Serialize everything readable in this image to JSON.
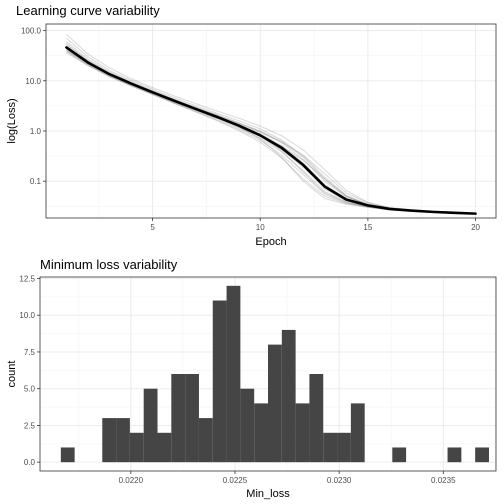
{
  "chart_data": [
    {
      "type": "line",
      "title": "Learning curve variability",
      "xlabel": "Epoch",
      "ylabel": "log(Loss)",
      "y_scale": "log",
      "xlim": [
        0.05,
        20.95
      ],
      "ylim": [
        0.0185,
        135
      ],
      "x_ticks": [
        5,
        10,
        15,
        20
      ],
      "x_tick_labels": [
        "5",
        "10",
        "15",
        "20"
      ],
      "y_ticks": [
        0.1,
        1,
        10,
        100
      ],
      "y_tick_labels": [
        "0.1",
        "1.0",
        "10.0",
        "100.0"
      ],
      "grid": true,
      "legend": "none",
      "series": [
        {
          "x": [
            1,
            2,
            3,
            4,
            5,
            6,
            7,
            8,
            9,
            10,
            11,
            12,
            13,
            14,
            15,
            16,
            17,
            18,
            19,
            20
          ],
          "values": [
            46,
            23,
            13.5,
            8.8,
            5.9,
            4.0,
            2.75,
            1.9,
            1.28,
            0.82,
            0.46,
            0.21,
            0.078,
            0.043,
            0.033,
            0.028,
            0.026,
            0.0245,
            0.0235,
            0.0226
          ]
        }
      ],
      "replicate_series": [
        [
          84,
          34,
          18,
          11,
          7.3,
          5.0,
          3.5,
          2.5,
          1.8,
          1.25,
          0.8,
          0.42,
          0.17,
          0.065,
          0.038,
          0.03,
          0.027,
          0.025,
          0.0238,
          0.0229
        ],
        [
          70,
          30,
          16,
          10.2,
          6.8,
          4.6,
          3.2,
          2.25,
          1.6,
          1.1,
          0.66,
          0.32,
          0.12,
          0.052,
          0.035,
          0.029,
          0.0265,
          0.0248,
          0.0236,
          0.0227
        ],
        [
          60,
          27,
          15,
          9.6,
          6.4,
          4.3,
          3.0,
          2.1,
          1.45,
          0.97,
          0.58,
          0.27,
          0.1,
          0.048,
          0.034,
          0.0285,
          0.026,
          0.0246,
          0.0235,
          0.0226
        ],
        [
          52,
          25,
          14,
          9.1,
          6.1,
          4.1,
          2.85,
          2.0,
          1.35,
          0.88,
          0.51,
          0.23,
          0.085,
          0.045,
          0.0335,
          0.0282,
          0.0258,
          0.0244,
          0.0234,
          0.0225
        ],
        [
          48,
          24,
          13.8,
          9.0,
          6.0,
          4.05,
          2.8,
          1.95,
          1.32,
          0.85,
          0.48,
          0.22,
          0.08,
          0.044,
          0.033,
          0.028,
          0.0257,
          0.0243,
          0.0233,
          0.0225
        ],
        [
          44,
          22.5,
          13.2,
          8.6,
          5.8,
          3.9,
          2.7,
          1.85,
          1.25,
          0.8,
          0.44,
          0.2,
          0.075,
          0.042,
          0.0325,
          0.0278,
          0.0256,
          0.0242,
          0.0233,
          0.0226
        ],
        [
          42,
          22,
          13,
          8.5,
          5.7,
          3.85,
          2.65,
          1.82,
          1.22,
          0.77,
          0.42,
          0.19,
          0.07,
          0.041,
          0.032,
          0.0277,
          0.0255,
          0.0242,
          0.0234,
          0.0227
        ],
        [
          40,
          21,
          12.5,
          8.2,
          5.5,
          3.7,
          2.55,
          1.75,
          1.15,
          0.72,
          0.38,
          0.16,
          0.062,
          0.039,
          0.0315,
          0.0275,
          0.0254,
          0.0241,
          0.0232,
          0.0225
        ],
        [
          38,
          20.5,
          12.2,
          8.0,
          5.4,
          3.6,
          2.45,
          1.66,
          1.08,
          0.66,
          0.33,
          0.135,
          0.055,
          0.037,
          0.031,
          0.0272,
          0.0253,
          0.024,
          0.0232,
          0.0224
        ],
        [
          36,
          20,
          12,
          7.9,
          5.3,
          3.55,
          2.4,
          1.6,
          1.02,
          0.6,
          0.29,
          0.11,
          0.05,
          0.036,
          0.0305,
          0.027,
          0.0252,
          0.024,
          0.0231,
          0.0224
        ],
        [
          40,
          22,
          13.2,
          8.7,
          5.9,
          4.1,
          2.9,
          2.05,
          1.45,
          1.0,
          0.62,
          0.3,
          0.11,
          0.05,
          0.034,
          0.028,
          0.0258,
          0.0243,
          0.0233,
          0.0226
        ],
        [
          55,
          25,
          14.2,
          9.2,
          6.2,
          4.2,
          2.9,
          1.98,
          1.3,
          0.8,
          0.4,
          0.15,
          0.058,
          0.038,
          0.031,
          0.0273,
          0.0254,
          0.0241,
          0.0232,
          0.0225
        ],
        [
          46,
          23.5,
          13.6,
          8.9,
          6.0,
          4.0,
          2.78,
          1.95,
          1.38,
          0.95,
          0.6,
          0.33,
          0.14,
          0.058,
          0.037,
          0.0295,
          0.0265,
          0.0247,
          0.0236,
          0.0228
        ],
        [
          48,
          23,
          13.4,
          8.8,
          5.95,
          4.0,
          2.72,
          1.85,
          1.2,
          0.7,
          0.3,
          0.1,
          0.045,
          0.035,
          0.0302,
          0.0268,
          0.025,
          0.0239,
          0.0231,
          0.0224
        ],
        [
          45,
          22.8,
          13.3,
          8.7,
          5.85,
          3.95,
          2.72,
          1.88,
          1.28,
          0.84,
          0.5,
          0.26,
          0.11,
          0.05,
          0.034,
          0.0285,
          0.026,
          0.0245,
          0.0235,
          0.0227
        ]
      ]
    },
    {
      "type": "bar",
      "subtype": "histogram",
      "title": "Minimum loss variability",
      "xlabel": "Min_loss",
      "ylabel": "count",
      "xlim": [
        0.021564,
        0.023753
      ],
      "ylim": [
        -0.6,
        12.6
      ],
      "x_ticks": [
        0.022,
        0.0225,
        0.023,
        0.0235
      ],
      "x_tick_labels": [
        "0.0220",
        "0.0225",
        "0.0230",
        "0.0235"
      ],
      "y_ticks": [
        0,
        2.5,
        5,
        7.5,
        10,
        12.5
      ],
      "y_tick_labels": [
        "0.0",
        "2.5",
        "5.0",
        "7.5",
        "10.0",
        "12.5"
      ],
      "grid": true,
      "legend": "none",
      "bar_color": "#454545",
      "bin_start": 0.021664,
      "bin_width": 6.63e-05,
      "values": [
        1,
        0,
        0,
        3,
        3,
        2,
        5,
        2,
        6,
        6,
        3,
        11,
        12,
        5,
        4,
        8,
        9,
        4,
        6,
        2,
        2,
        4,
        0,
        0,
        1,
        0,
        0,
        0,
        1,
        0,
        1
      ]
    }
  ]
}
